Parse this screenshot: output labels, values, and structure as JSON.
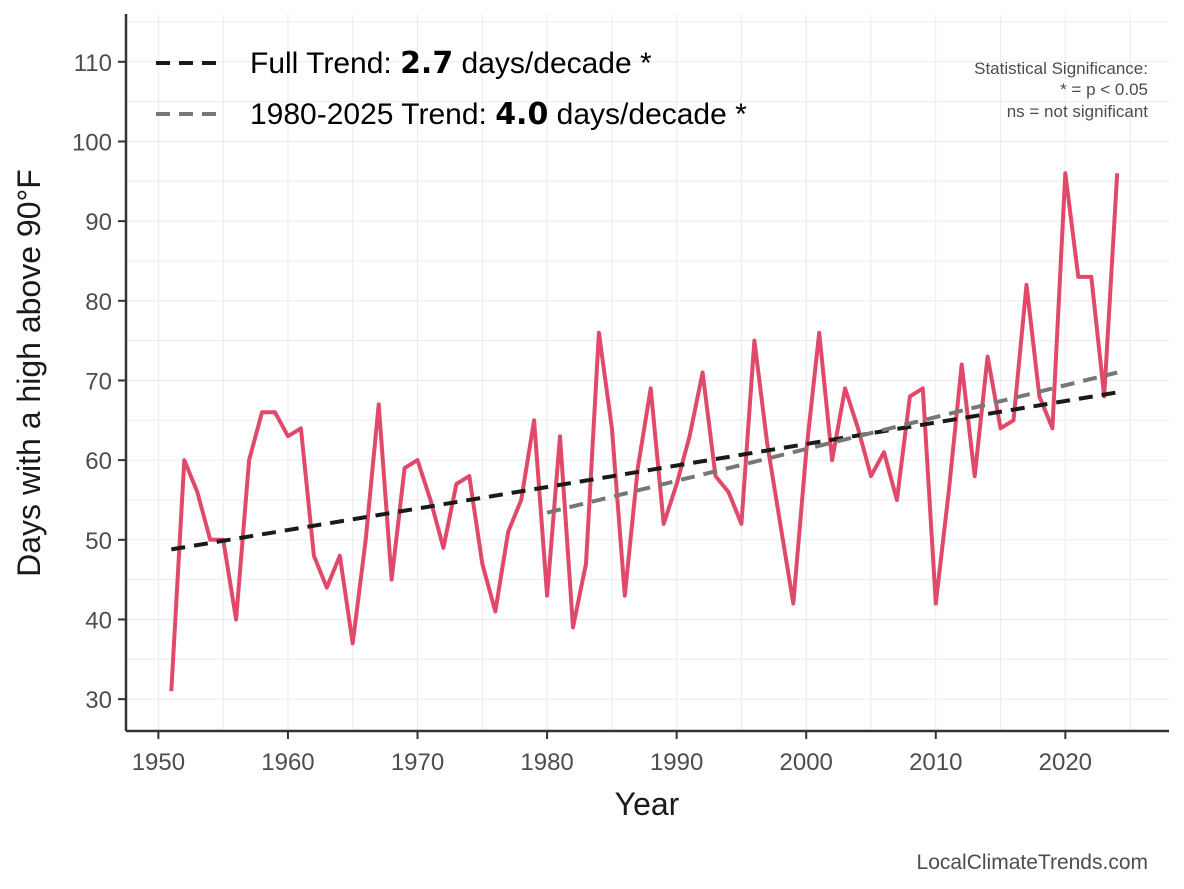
{
  "chart_data": {
    "type": "line",
    "xlabel": "Year",
    "ylabel": "Days with a high above 90°F",
    "xlim": [
      1947.5,
      2028
    ],
    "ylim": [
      26,
      116
    ],
    "xticks": [
      1950,
      1960,
      1970,
      1980,
      1990,
      2000,
      2010,
      2020
    ],
    "yticks": [
      30,
      40,
      50,
      60,
      70,
      80,
      90,
      100,
      110
    ],
    "grid": true,
    "legend_placement": "top-left",
    "colors": {
      "observed": "#e0496a",
      "full_trend": "#1a1a1a",
      "recent_trend": "#777777"
    },
    "series": [
      {
        "style": "solid",
        "x": [
          1951,
          1952,
          1953,
          1954,
          1955,
          1956,
          1957,
          1958,
          1959,
          1960,
          1961,
          1962,
          1963,
          1964,
          1965,
          1966,
          1967,
          1968,
          1969,
          1970,
          1971,
          1972,
          1973,
          1974,
          1975,
          1976,
          1977,
          1978,
          1979,
          1980,
          1981,
          1982,
          1983,
          1984,
          1985,
          1986,
          1987,
          1988,
          1989,
          1990,
          1991,
          1992,
          1993,
          1994,
          1995,
          1996,
          1997,
          1998,
          1999,
          2000,
          2001,
          2002,
          2003,
          2004,
          2005,
          2006,
          2007,
          2008,
          2009,
          2010,
          2011,
          2012,
          2013,
          2014,
          2015,
          2016,
          2017,
          2018,
          2019,
          2020,
          2021,
          2022,
          2023,
          2024
        ],
        "values": [
          31,
          60,
          56,
          50,
          50,
          40,
          60,
          66,
          66,
          63,
          64,
          48,
          44,
          48,
          37,
          50,
          67,
          45,
          59,
          60,
          55,
          49,
          57,
          58,
          47,
          41,
          51,
          55,
          65,
          43,
          63,
          39,
          47,
          76,
          64,
          43,
          59,
          69,
          52,
          57,
          63,
          71,
          58,
          56,
          52,
          75,
          62,
          52,
          42,
          61,
          76,
          60,
          69,
          64,
          58,
          61,
          55,
          68,
          69,
          42,
          56,
          72,
          58,
          73,
          64,
          65,
          82,
          68,
          64,
          96,
          83,
          83,
          68,
          96
        ]
      },
      {
        "name": "Full Trend",
        "style": "dashed",
        "x": [
          1951,
          2024
        ],
        "values": [
          48.8,
          68.5
        ]
      },
      {
        "name": "1980-2025 Trend",
        "style": "dashed",
        "x": [
          1980,
          2024
        ],
        "values": [
          53.4,
          71.0
        ]
      }
    ],
    "legend": [
      {
        "prefix": "Full Trend: ",
        "value": "2.7",
        "suffix": " days/decade *"
      },
      {
        "prefix": "1980-2025 Trend: ",
        "value": "4.0",
        "suffix": " days/decade *"
      }
    ],
    "annotation": {
      "lines": [
        "Statistical Significance:",
        "* = p < 0.05",
        "ns = not significant"
      ]
    },
    "source": "LocalClimateTrends.com"
  }
}
